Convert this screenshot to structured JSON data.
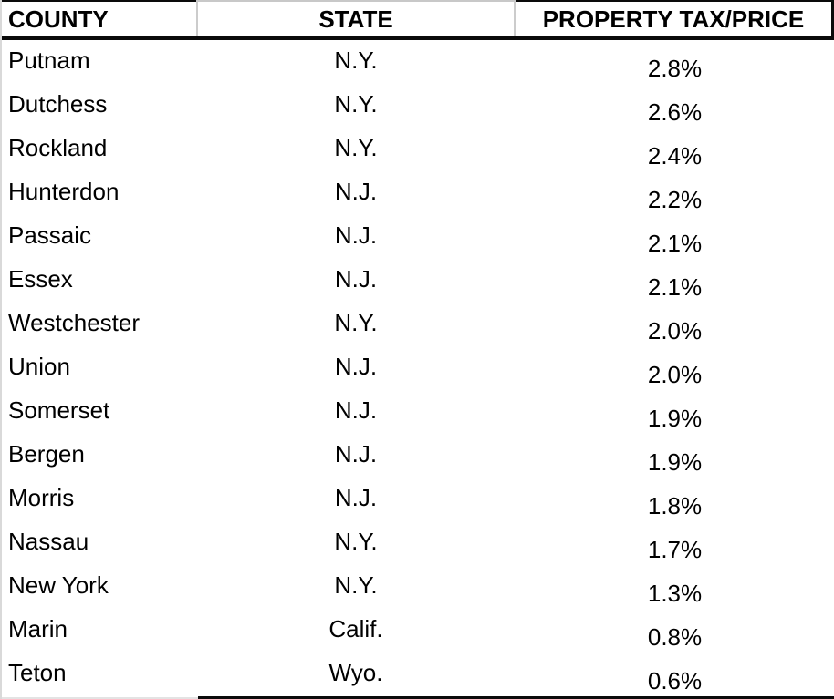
{
  "table": {
    "columns": [
      {
        "key": "county",
        "label": "COUNTY"
      },
      {
        "key": "state",
        "label": "STATE"
      },
      {
        "key": "property_tax_price",
        "label": "PROPERTY TAX/PRICE"
      }
    ],
    "rows": [
      {
        "county": "Putnam",
        "state": "N.Y.",
        "tax": "2.8%"
      },
      {
        "county": "Dutchess",
        "state": "N.Y.",
        "tax": "2.6%"
      },
      {
        "county": "Rockland",
        "state": "N.Y.",
        "tax": "2.4%"
      },
      {
        "county": "Hunterdon",
        "state": "N.J.",
        "tax": "2.2%"
      },
      {
        "county": "Passaic",
        "state": "N.J.",
        "tax": "2.1%"
      },
      {
        "county": "Essex",
        "state": "N.J.",
        "tax": "2.1%"
      },
      {
        "county": "Westchester",
        "state": "N.Y.",
        "tax": "2.0%"
      },
      {
        "county": "Union",
        "state": "N.J.",
        "tax": "2.0%"
      },
      {
        "county": "Somerset",
        "state": "N.J.",
        "tax": "1.9%"
      },
      {
        "county": "Bergen",
        "state": "N.J.",
        "tax": "1.9%"
      },
      {
        "county": "Morris",
        "state": "N.J.",
        "tax": "1.8%"
      },
      {
        "county": "Nassau",
        "state": "N.Y.",
        "tax": "1.7%"
      },
      {
        "county": "New York",
        "state": "N.Y.",
        "tax": "1.3%"
      },
      {
        "county": "Marin",
        "state": "Calif.",
        "tax": "0.8%"
      },
      {
        "county": "Teton",
        "state": "Wyo.",
        "tax": "0.6%"
      }
    ]
  },
  "chart_data": {
    "type": "table",
    "columns": [
      "COUNTY",
      "STATE",
      "PROPERTY TAX/PRICE"
    ],
    "rows": [
      [
        "Putnam",
        "N.Y.",
        "2.8%"
      ],
      [
        "Dutchess",
        "N.Y.",
        "2.6%"
      ],
      [
        "Rockland",
        "N.Y.",
        "2.4%"
      ],
      [
        "Hunterdon",
        "N.J.",
        "2.2%"
      ],
      [
        "Passaic",
        "N.J.",
        "2.1%"
      ],
      [
        "Essex",
        "N.J.",
        "2.1%"
      ],
      [
        "Westchester",
        "N.Y.",
        "2.0%"
      ],
      [
        "Union",
        "N.J.",
        "2.0%"
      ],
      [
        "Somerset",
        "N.J.",
        "1.9%"
      ],
      [
        "Bergen",
        "N.J.",
        "1.9%"
      ],
      [
        "Morris",
        "N.J.",
        "1.8%"
      ],
      [
        "Nassau",
        "N.Y.",
        "1.7%"
      ],
      [
        "New York",
        "N.Y.",
        "1.3%"
      ],
      [
        "Marin",
        "Calif.",
        "0.8%"
      ],
      [
        "Teton",
        "Wyo.",
        "0.6%"
      ]
    ],
    "tax_percent_values": [
      2.8,
      2.6,
      2.4,
      2.2,
      2.1,
      2.1,
      2.0,
      2.0,
      1.9,
      1.9,
      1.8,
      1.7,
      1.3,
      0.8,
      0.6
    ]
  },
  "colors": {
    "text": "#000000",
    "background": "#ffffff",
    "rule_black": "#0a0a0a",
    "rule_gray": "#cccccc"
  }
}
